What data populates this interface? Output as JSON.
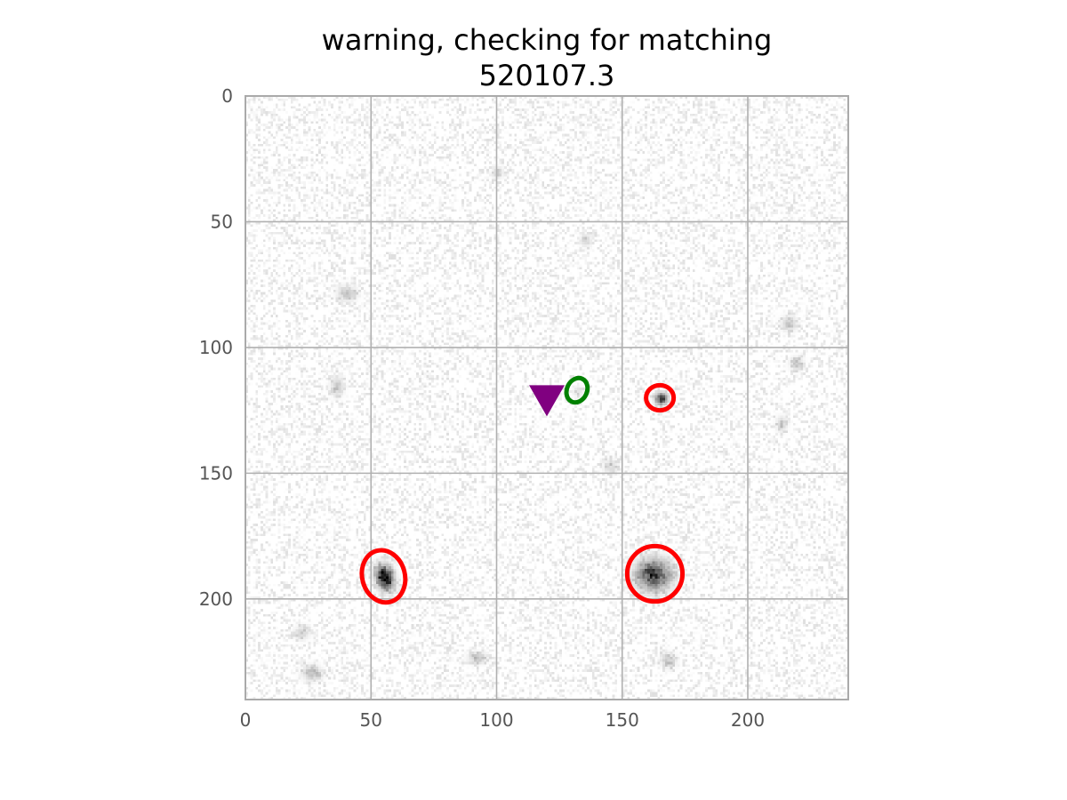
{
  "chart_data": {
    "type": "image-cutout",
    "title_lines": [
      "warning, checking for matching",
      "520107.3"
    ],
    "xlim": [
      0,
      240
    ],
    "ylim": [
      240,
      0
    ],
    "x_ticks": [
      0,
      50,
      100,
      150,
      200
    ],
    "y_ticks": [
      0,
      50,
      100,
      150,
      200
    ],
    "x_tick_labels": [
      "0",
      "50",
      "100",
      "150",
      "200"
    ],
    "y_tick_labels": [
      "0",
      "50",
      "100",
      "150",
      "200"
    ],
    "grid": true,
    "colormap": "gray_r",
    "sources": [
      {
        "name": "source-1",
        "x": 55,
        "y": 191,
        "intensity": 1.0,
        "sigma_x": 2.2,
        "sigma_y": 3.2,
        "rotation_deg": -15
      },
      {
        "name": "source-2",
        "x": 162,
        "y": 190,
        "intensity": 0.75,
        "sigma_x": 4.5,
        "sigma_y": 4.0,
        "rotation_deg": 0
      },
      {
        "name": "source-3",
        "x": 165,
        "y": 120,
        "intensity": 0.7,
        "sigma_x": 1.6,
        "sigma_y": 1.6,
        "rotation_deg": 0
      },
      {
        "name": "faint-1",
        "x": 132,
        "y": 117,
        "intensity": 0.12,
        "sigma_x": 1.5,
        "sigma_y": 1.5,
        "rotation_deg": 0
      },
      {
        "name": "faint-2",
        "x": 40,
        "y": 78,
        "intensity": 0.22,
        "sigma_x": 2.5,
        "sigma_y": 2.0,
        "rotation_deg": 0
      },
      {
        "name": "faint-3",
        "x": 36,
        "y": 115,
        "intensity": 0.2,
        "sigma_x": 1.8,
        "sigma_y": 2.5,
        "rotation_deg": 0
      },
      {
        "name": "faint-4",
        "x": 26,
        "y": 229,
        "intensity": 0.25,
        "sigma_x": 2.5,
        "sigma_y": 2.0,
        "rotation_deg": 0
      },
      {
        "name": "faint-5",
        "x": 92,
        "y": 223,
        "intensity": 0.22,
        "sigma_x": 2.5,
        "sigma_y": 1.5,
        "rotation_deg": 0
      },
      {
        "name": "faint-6",
        "x": 168,
        "y": 224,
        "intensity": 0.2,
        "sigma_x": 2.0,
        "sigma_y": 2.0,
        "rotation_deg": 0
      },
      {
        "name": "faint-7",
        "x": 216,
        "y": 90,
        "intensity": 0.22,
        "sigma_x": 2.0,
        "sigma_y": 2.0,
        "rotation_deg": 0
      },
      {
        "name": "faint-8",
        "x": 219,
        "y": 106,
        "intensity": 0.2,
        "sigma_x": 1.8,
        "sigma_y": 1.8,
        "rotation_deg": 0
      },
      {
        "name": "faint-9",
        "x": 213,
        "y": 130,
        "intensity": 0.18,
        "sigma_x": 1.5,
        "sigma_y": 2.0,
        "rotation_deg": 0
      },
      {
        "name": "faint-10",
        "x": 100,
        "y": 30,
        "intensity": 0.18,
        "sigma_x": 1.5,
        "sigma_y": 1.5,
        "rotation_deg": 0
      },
      {
        "name": "faint-11",
        "x": 135,
        "y": 57,
        "intensity": 0.18,
        "sigma_x": 1.5,
        "sigma_y": 1.5,
        "rotation_deg": 0
      },
      {
        "name": "faint-12",
        "x": 22,
        "y": 213,
        "intensity": 0.18,
        "sigma_x": 2.0,
        "sigma_y": 1.8,
        "rotation_deg": 0
      },
      {
        "name": "faint-13",
        "x": 145,
        "y": 147,
        "intensity": 0.15,
        "sigma_x": 2.0,
        "sigma_y": 2.0,
        "rotation_deg": 0
      }
    ],
    "ellipses": [
      {
        "name": "detection-ellipse-1",
        "x": 55,
        "y": 191,
        "width": 17,
        "height": 21,
        "angle_deg": -15,
        "color": "#ff0000"
      },
      {
        "name": "detection-ellipse-2",
        "x": 163,
        "y": 190,
        "width": 22,
        "height": 22,
        "angle_deg": 0,
        "color": "#ff0000"
      },
      {
        "name": "detection-ellipse-3",
        "x": 165,
        "y": 120,
        "width": 11,
        "height": 10,
        "angle_deg": 0,
        "color": "#ff0000"
      },
      {
        "name": "match-ellipse",
        "x": 132,
        "y": 117,
        "width": 8,
        "height": 10,
        "angle_deg": 25,
        "color": "#008000"
      }
    ],
    "markers": [
      {
        "name": "target-marker",
        "shape": "triangle-down",
        "x": 120,
        "y": 121,
        "color": "#800080"
      }
    ],
    "colors": {
      "detection": "#ff0000",
      "match": "#008000",
      "marker": "#800080",
      "grid": "#b0b0b0",
      "axis_frame": "#aaaaaa",
      "tick_text": "#555555"
    }
  }
}
